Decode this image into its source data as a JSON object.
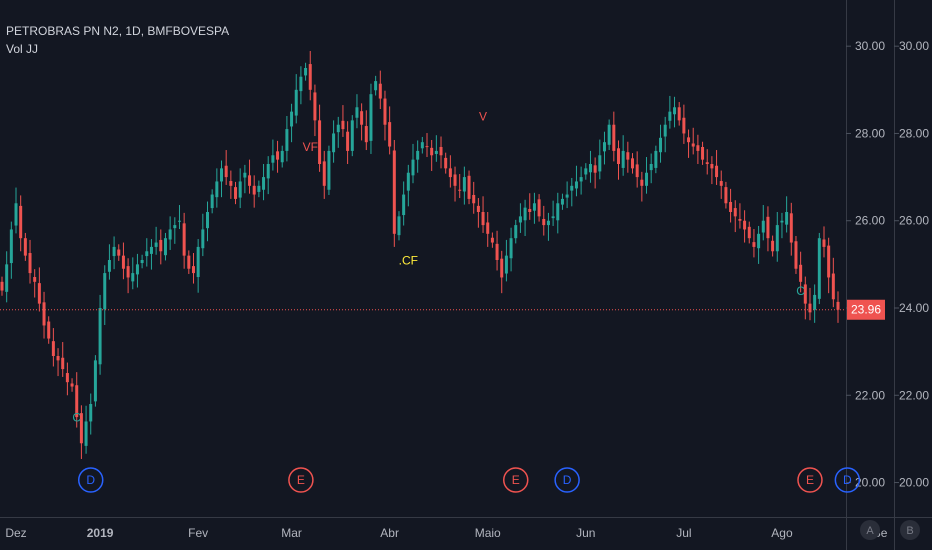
{
  "header": {
    "symbol_line": "PETROBRAS PN N2, 1D, BMFBOVESPA",
    "indicator_line": "Vol JJ"
  },
  "colors": {
    "background": "#131722",
    "up": "#26a69a",
    "down": "#ef5350",
    "last_price_line": "#ef5350",
    "dividend_marker": "#2962ff",
    "earnings_marker": "#ef5350",
    "axis_text": "#b2b5be"
  },
  "price_scales": {
    "right_scale_1": [
      "30.00",
      "28.00",
      "26.00",
      "24.00",
      "22.00",
      "20.00"
    ],
    "right_scale_2": [
      "30.00",
      "28.00",
      "26.00",
      "24.00",
      "22.00",
      "20.00"
    ],
    "last_price_label": "23.96",
    "scale_mode_buttons": [
      "A",
      "B"
    ]
  },
  "chart_data": {
    "type": "candlestick",
    "title": "PETROBRAS PN N2, 1D, BMFBOVESPA",
    "ylim": [
      19.6,
      30.6
    ],
    "x_tick_labels": [
      "Dez",
      "2019",
      "Fev",
      "Mar",
      "Abr",
      "Maio",
      "Jun",
      "Jul",
      "Ago",
      "Se"
    ],
    "x_tick_positions": [
      0,
      21,
      42,
      62,
      83,
      104,
      125,
      146,
      167,
      188
    ],
    "last_price": 23.96,
    "series": [
      {
        "name": "close",
        "values": [
          24.4,
          25.0,
          25.8,
          26.4,
          25.6,
          25.2,
          24.8,
          24.6,
          24.1,
          23.6,
          23.3,
          22.9,
          22.8,
          22.6,
          22.3,
          22.2,
          21.5,
          20.9,
          21.4,
          21.8,
          22.8,
          24.0,
          24.8,
          25.1,
          25.4,
          25.2,
          24.9,
          24.7,
          24.8,
          25.0,
          25.1,
          25.3,
          25.4,
          25.5,
          25.3,
          25.6,
          25.8,
          25.9,
          26.0,
          25.2,
          24.9,
          24.8,
          25.4,
          25.8,
          26.2,
          26.6,
          26.9,
          27.2,
          27.0,
          26.8,
          26.5,
          26.9,
          27.1,
          26.8,
          26.6,
          26.8,
          27.0,
          27.3,
          27.5,
          27.4,
          27.6,
          28.1,
          28.5,
          29.0,
          29.3,
          29.5,
          29.0,
          28.3,
          27.3,
          26.8,
          27.6,
          28.0,
          28.2,
          28.1,
          27.6,
          28.3,
          28.6,
          28.2,
          27.8,
          28.9,
          29.2,
          28.8,
          28.2,
          27.7,
          25.7,
          26.1,
          26.6,
          27.1,
          27.4,
          27.6,
          27.8,
          27.7,
          27.5,
          27.6,
          27.5,
          27.2,
          27.0,
          26.8,
          26.7,
          27.0,
          26.5,
          26.4,
          26.2,
          25.9,
          25.7,
          25.5,
          25.1,
          24.7,
          25.2,
          25.6,
          25.9,
          26.1,
          26.3,
          26.2,
          26.4,
          26.1,
          25.9,
          26.0,
          26.1,
          26.4,
          26.5,
          26.6,
          26.8,
          26.9,
          27.0,
          27.2,
          27.3,
          27.1,
          27.5,
          27.8,
          28.2,
          27.6,
          27.3,
          27.6,
          27.4,
          27.2,
          27.0,
          26.8,
          27.1,
          27.3,
          27.6,
          27.9,
          28.2,
          28.5,
          28.6,
          28.3,
          28.0,
          27.8,
          27.7,
          27.6,
          27.4,
          27.3,
          27.2,
          27.0,
          26.8,
          26.4,
          26.2,
          26.1,
          26.0,
          25.8,
          25.6,
          25.4,
          25.7,
          26.0,
          25.6,
          25.3,
          25.9,
          26.0,
          26.2,
          25.5,
          24.9,
          24.6,
          24.1,
          23.9,
          24.3,
          25.6,
          25.4,
          24.7,
          24.2,
          23.96
        ]
      }
    ],
    "annotations": [
      {
        "text": "C",
        "at_bar": 16,
        "price": 21.4,
        "color": "#26a69a"
      },
      {
        "text": "VF",
        "at_bar": 66,
        "price": 27.6,
        "color": "#ef5350"
      },
      {
        "text": ".CF",
        "at_bar": 87,
        "price": 25.0,
        "color": "#ffeb3b"
      },
      {
        "text": "V",
        "at_bar": 103,
        "price": 28.3,
        "color": "#ef5350"
      },
      {
        "text": "C",
        "at_bar": 171,
        "price": 24.3,
        "color": "#26a69a"
      }
    ],
    "event_markers": [
      {
        "text": "D",
        "at_bar": 19,
        "kind": "dividend"
      },
      {
        "text": "E",
        "at_bar": 64,
        "kind": "earnings"
      },
      {
        "text": "E",
        "at_bar": 110,
        "kind": "earnings"
      },
      {
        "text": "D",
        "at_bar": 121,
        "kind": "dividend"
      },
      {
        "text": "E",
        "at_bar": 173,
        "kind": "earnings"
      },
      {
        "text": "D",
        "at_bar": 181,
        "kind": "dividend"
      }
    ]
  }
}
